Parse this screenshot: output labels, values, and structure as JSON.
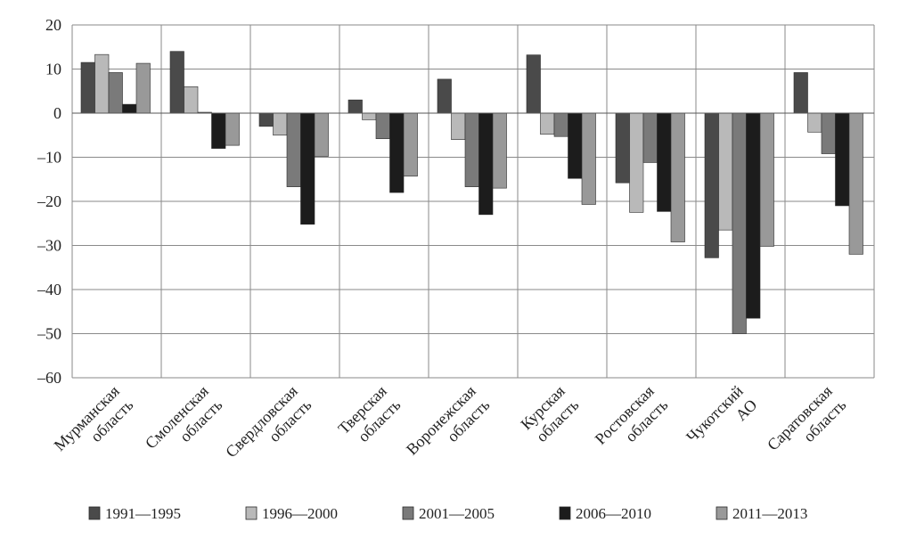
{
  "chart_data": {
    "type": "bar",
    "categories": [
      [
        "Мурманская",
        "область"
      ],
      [
        "Смоленская",
        "область"
      ],
      [
        "Свердловская",
        "область"
      ],
      [
        "Тверская",
        "область"
      ],
      [
        "Воронежская",
        "область"
      ],
      [
        "Курская",
        "область"
      ],
      [
        "Ростовская",
        "область"
      ],
      [
        "Чукотский",
        "АО"
      ],
      [
        "Саратовская",
        "область"
      ]
    ],
    "series": [
      {
        "name": "1991—1995",
        "color": "#4a4a4a",
        "values": [
          11.5,
          14,
          -3,
          3,
          7.7,
          13.2,
          -15.8,
          -32.8,
          9.2
        ]
      },
      {
        "name": "1996—2000",
        "color": "#b9b9b9",
        "values": [
          13.3,
          6,
          -5,
          -1.5,
          -6,
          -4.8,
          -22.5,
          -26.5,
          -4.3
        ]
      },
      {
        "name": "2001—2005",
        "color": "#7a7a7a",
        "values": [
          9.2,
          0.2,
          -16.7,
          -5.8,
          -16.7,
          -5.3,
          -11.2,
          -50,
          -9.2
        ]
      },
      {
        "name": "2006—2010",
        "color": "#1c1c1c",
        "values": [
          2,
          -8,
          -25.2,
          -18,
          -23,
          -14.8,
          -22.3,
          -46.5,
          -21
        ]
      },
      {
        "name": "2011—2013",
        "color": "#999999",
        "values": [
          11.3,
          -7.3,
          -9.8,
          -14.3,
          -17,
          -20.7,
          -29.2,
          -30.2,
          -32
        ]
      }
    ],
    "yticks": [
      "20",
      "10",
      "0",
      "–10",
      "–20",
      "–30",
      "–40",
      "–50",
      "–60"
    ],
    "ylim": [
      -60,
      20
    ],
    "grid": true,
    "legend_position": "bottom"
  }
}
